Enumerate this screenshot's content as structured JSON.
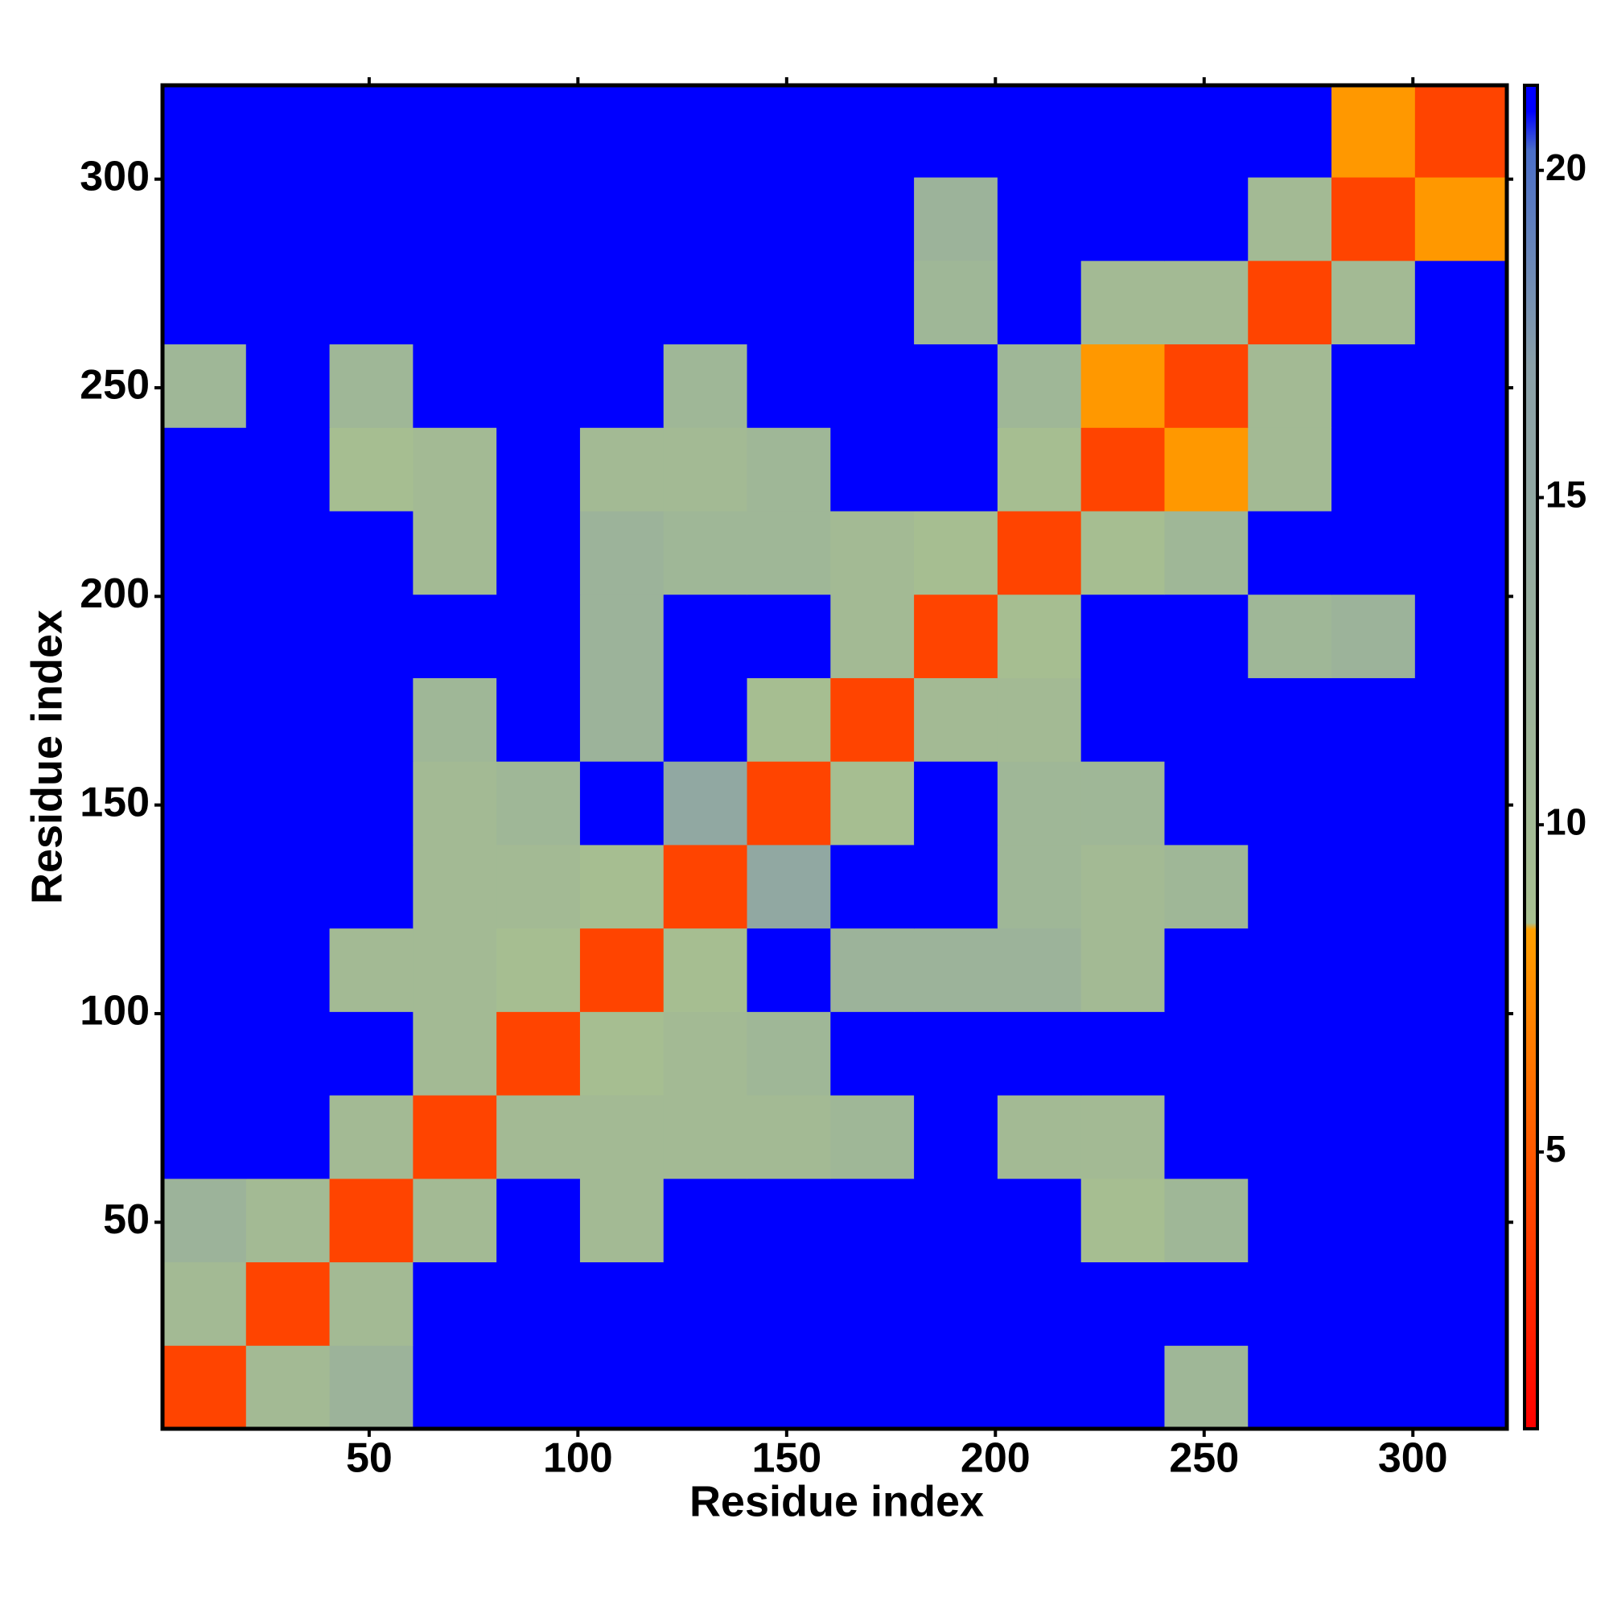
{
  "chart_data": {
    "type": "heatmap",
    "xlabel": "Residue index",
    "ylabel": "Residue index",
    "x_edges": [
      0.5,
      20.5,
      40.5,
      60.5,
      80.5,
      100.5,
      120.5,
      140.5,
      160.5,
      180.5,
      200.5,
      220.5,
      240.5,
      260.5,
      280.5,
      300.5,
      322.5
    ],
    "y_edges": [
      0.5,
      20.5,
      40.5,
      60.5,
      80.5,
      100.5,
      120.5,
      140.5,
      160.5,
      180.5,
      200.5,
      220.5,
      240.5,
      260.5,
      280.5,
      300.5,
      322.5
    ],
    "z": [
      [
        4,
        10,
        12,
        21,
        21,
        21,
        21,
        21,
        21,
        21,
        21,
        21,
        11,
        21,
        21,
        21
      ],
      [
        10,
        4,
        10,
        21,
        21,
        21,
        21,
        21,
        21,
        21,
        21,
        21,
        21,
        21,
        21,
        21
      ],
      [
        12,
        10,
        4,
        10,
        21,
        10,
        21,
        21,
        21,
        21,
        21,
        9,
        11,
        21,
        21,
        21
      ],
      [
        21,
        21,
        10,
        4,
        10,
        10,
        10,
        10,
        11,
        21,
        10,
        10,
        21,
        21,
        21,
        21
      ],
      [
        21,
        21,
        21,
        10,
        4,
        9,
        10,
        11,
        21,
        21,
        21,
        21,
        21,
        21,
        21,
        21
      ],
      [
        21,
        21,
        10,
        10,
        9,
        4,
        9,
        21,
        12,
        12,
        12,
        10,
        21,
        21,
        21,
        21
      ],
      [
        21,
        21,
        21,
        10,
        10,
        9,
        4,
        15,
        21,
        21,
        11,
        10,
        11,
        21,
        21,
        21
      ],
      [
        21,
        21,
        21,
        10,
        11,
        21,
        15,
        4,
        9,
        21,
        11,
        11,
        21,
        21,
        21,
        21
      ],
      [
        21,
        21,
        21,
        11,
        21,
        12,
        21,
        9,
        4,
        10,
        10,
        21,
        21,
        21,
        21,
        21
      ],
      [
        21,
        21,
        21,
        21,
        21,
        12,
        21,
        21,
        10,
        4,
        9,
        21,
        21,
        11,
        12,
        21
      ],
      [
        21,
        21,
        21,
        10,
        21,
        12,
        11,
        11,
        10,
        9,
        4,
        9,
        11,
        21,
        21,
        21
      ],
      [
        21,
        21,
        9,
        10,
        21,
        10,
        10,
        11,
        21,
        21,
        9,
        4,
        8,
        10,
        21,
        21
      ],
      [
        11,
        21,
        11,
        21,
        21,
        21,
        11,
        21,
        21,
        21,
        11,
        8,
        4,
        10,
        21,
        21
      ],
      [
        21,
        21,
        21,
        21,
        21,
        21,
        21,
        21,
        21,
        11,
        21,
        10,
        10,
        4,
        10,
        21
      ],
      [
        21,
        21,
        21,
        21,
        21,
        21,
        21,
        21,
        21,
        12,
        21,
        21,
        21,
        10,
        4,
        8
      ],
      [
        21,
        21,
        21,
        21,
        21,
        21,
        21,
        21,
        21,
        21,
        21,
        21,
        21,
        21,
        8,
        4
      ]
    ],
    "xlim": [
      0.5,
      322.5
    ],
    "ylim": [
      0.5,
      322.5
    ],
    "xticks": [
      50,
      100,
      150,
      200,
      250,
      300
    ],
    "yticks": [
      50,
      100,
      150,
      200,
      250,
      300
    ],
    "clim": [
      0.77,
      21.3
    ],
    "cticks": [
      5,
      10,
      15,
      20
    ],
    "colorscale": [
      [
        0.77,
        "#ff0000"
      ],
      [
        8.4,
        "#ffa000"
      ],
      [
        8.5,
        "#a8c090"
      ],
      [
        17,
        "#8aa0a8"
      ],
      [
        20.3,
        "#4a6ec8"
      ],
      [
        20.9,
        "#0000ff"
      ],
      [
        21.3,
        "#0000ff"
      ]
    ]
  }
}
